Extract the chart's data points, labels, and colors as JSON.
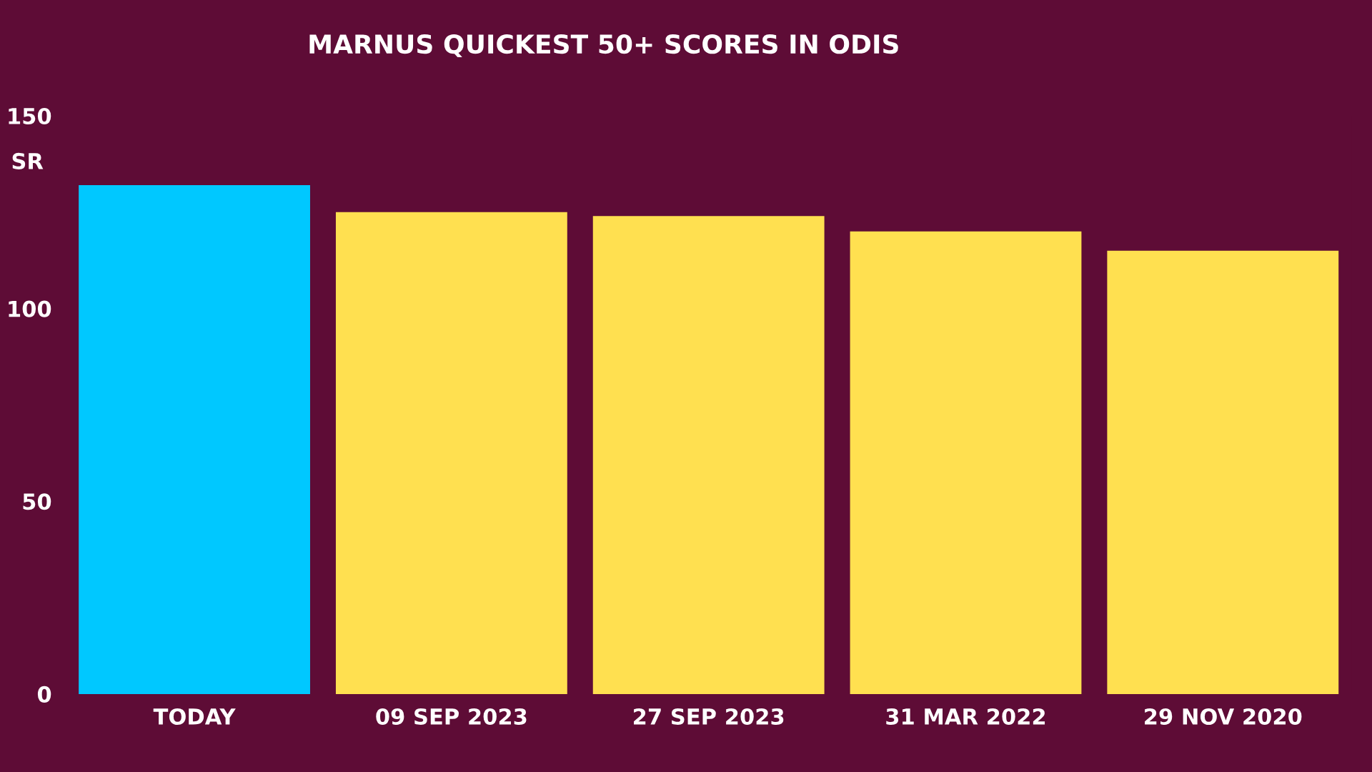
{
  "chart_data": {
    "type": "bar",
    "title": "MARNUS QUICKEST 50+ SCORES IN ODIS",
    "ylabel": "SR",
    "categories": [
      "TODAY",
      "09 SEP 2023",
      "27 SEP 2023",
      "31 MAR 2022",
      "29 NOV 2020"
    ],
    "values": [
      132,
      125,
      124,
      120,
      115
    ],
    "colors": [
      "#00c8ff",
      "#ffe050",
      "#ffe050",
      "#ffe050",
      "#ffe050"
    ],
    "ylim": [
      0,
      150
    ],
    "yticks": [
      0,
      50,
      100,
      150
    ],
    "grid": false,
    "legend": false
  }
}
